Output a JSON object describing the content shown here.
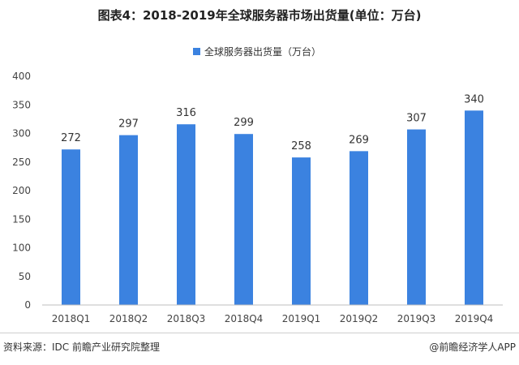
{
  "header": {
    "title": "图表4：2018-2019年全球服务器市场出货量(单位：万台)"
  },
  "chart_data": {
    "type": "bar",
    "title": "图表4：2018-2019年全球服务器市场出货量(单位：万台)",
    "categories": [
      "2018Q1",
      "2018Q2",
      "2018Q3",
      "2018Q4",
      "2019Q1",
      "2019Q2",
      "2019Q3",
      "2019Q4"
    ],
    "series": [
      {
        "name": "全球服务器出货量（万台）",
        "values": [
          272,
          297,
          316,
          299,
          258,
          269,
          307,
          340
        ],
        "color": "#3b82e0"
      }
    ],
    "ylim": [
      0,
      400
    ],
    "yticks": [
      0,
      50,
      100,
      150,
      200,
      250,
      300,
      350,
      400
    ],
    "data_labels": true,
    "grid": false,
    "legend_position": "top-center"
  },
  "footer": {
    "source": "资料来源：IDC 前瞻产业研究院整理",
    "credit": "@前瞻经济学人APP"
  }
}
